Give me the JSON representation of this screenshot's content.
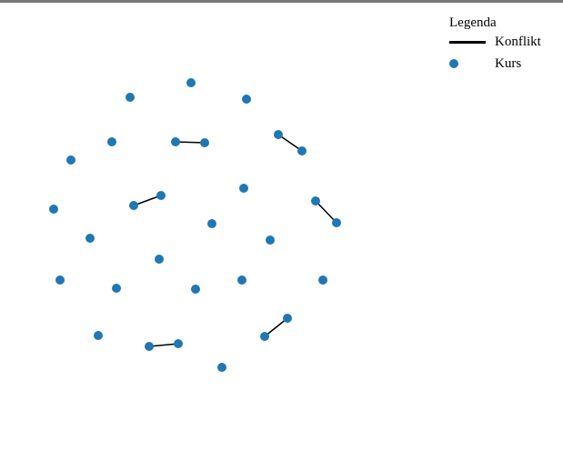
{
  "legend": {
    "title": "Legenda",
    "conflict_label": "Konflikt",
    "course_label": "Kurs"
  },
  "colors": {
    "node": "#1f77b4",
    "edge": "#000000",
    "topbar": "#777777"
  },
  "graph": {
    "node_count": 30,
    "edges": [
      [
        0,
        1
      ],
      [
        2,
        3
      ],
      [
        4,
        5
      ],
      [
        6,
        7
      ],
      [
        8,
        9
      ],
      [
        10,
        11
      ]
    ]
  }
}
